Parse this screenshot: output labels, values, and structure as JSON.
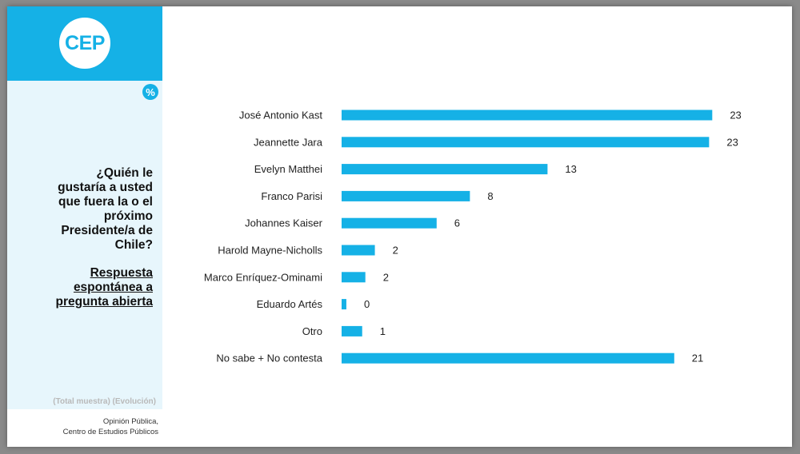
{
  "brand": {
    "logo_text": "CEP",
    "accent": "#15b1e6"
  },
  "unit_badge": "%",
  "question_lines": [
    "¿Quién le",
    "gustaría a usted",
    "que fuera la o el",
    "próximo",
    "Presidente/a de",
    "Chile?"
  ],
  "answer_type_lines": [
    "Respuesta",
    "espontánea a",
    "pregunta abierta"
  ],
  "sample_note": "(Total muestra) (Evolución)",
  "source_lines": [
    "Opinión Pública,",
    "Centro de Estudios Públicos"
  ],
  "chart_data": {
    "type": "bar",
    "orientation": "horizontal",
    "categories": [
      "José Antonio Kast",
      "Jeannette Jara",
      "Evelyn Matthei",
      "Franco Parisi",
      "Johannes Kaiser",
      "Harold Mayne-Nicholls",
      "Marco Enríquez-Ominami",
      "Eduardo Artés",
      "Otro",
      "No sabe + No contesta"
    ],
    "values": [
      23,
      23,
      13,
      8,
      6,
      2,
      2,
      0,
      1,
      21
    ],
    "value_labels": [
      "23",
      "23",
      "13",
      "8",
      "6",
      "2",
      "2",
      "0",
      "1",
      "21"
    ],
    "bar_scale_values": [
      23.4,
      23.2,
      13.0,
      8.1,
      6.0,
      2.1,
      1.5,
      0.3,
      1.3,
      21.0
    ],
    "xlim": [
      0,
      25
    ],
    "bar_color": "#15b1e6",
    "grid": false,
    "legend": "none"
  }
}
